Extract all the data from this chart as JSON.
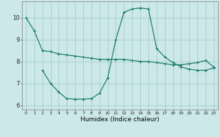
{
  "line1_x": [
    0,
    1,
    2,
    3,
    4,
    5,
    6,
    7,
    8,
    9,
    10,
    11,
    12,
    13,
    14,
    15,
    16,
    17,
    18,
    19,
    20,
    21,
    22,
    23
  ],
  "line1_y": [
    10.0,
    9.4,
    8.5,
    8.45,
    8.35,
    8.3,
    8.25,
    8.2,
    8.15,
    8.1,
    8.1,
    8.1,
    8.1,
    8.05,
    8.0,
    8.0,
    7.95,
    7.9,
    7.85,
    7.85,
    7.9,
    7.95,
    8.05,
    7.75
  ],
  "line2_x": [
    2,
    3,
    4,
    5,
    6,
    7,
    8,
    9,
    10,
    11,
    12,
    13,
    14,
    15,
    16,
    17,
    18,
    19,
    20,
    21,
    22,
    23
  ],
  "line2_y": [
    7.6,
    7.0,
    6.6,
    6.3,
    6.28,
    6.28,
    6.3,
    6.55,
    7.25,
    9.0,
    10.25,
    10.4,
    10.45,
    10.4,
    8.6,
    8.2,
    7.95,
    7.75,
    7.65,
    7.6,
    7.6,
    7.7
  ],
  "line_color": "#1a7a6e",
  "bg_color": "#cce8e8",
  "grid_color": "#aad0d0",
  "xlabel": "Humidex (Indice chaleur)",
  "xlim": [
    -0.5,
    23.5
  ],
  "ylim": [
    5.8,
    10.75
  ],
  "yticks": [
    6,
    7,
    8,
    9,
    10
  ],
  "xticks": [
    0,
    1,
    2,
    3,
    4,
    5,
    6,
    7,
    8,
    9,
    10,
    11,
    12,
    13,
    14,
    15,
    16,
    17,
    18,
    19,
    20,
    21,
    22,
    23
  ]
}
